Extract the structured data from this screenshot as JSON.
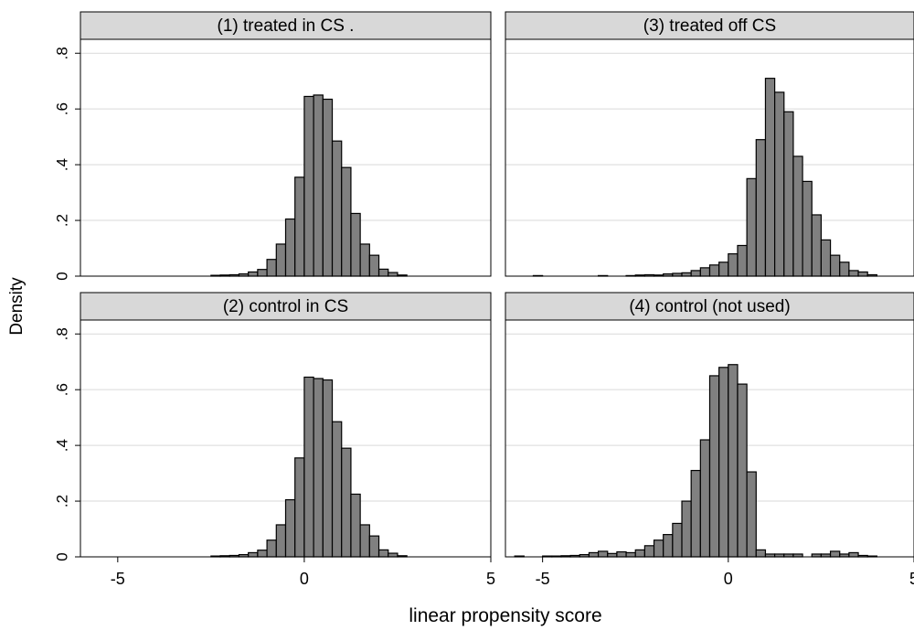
{
  "chart_data": {
    "type": "histogram",
    "layout": "2x2 small multiples",
    "xlabel": "linear propensity score",
    "ylabel": "Density",
    "xlim": [
      -6,
      5
    ],
    "ylim": [
      0,
      0.85
    ],
    "x_ticks": [
      {
        "value": -5,
        "label": "-5"
      },
      {
        "value": 0,
        "label": "0"
      },
      {
        "value": 5,
        "label": "5"
      }
    ],
    "y_ticks": [
      {
        "value": 0,
        "label": "0"
      },
      {
        "value": 0.2,
        "label": ".2"
      },
      {
        "value": 0.4,
        "label": ".4"
      },
      {
        "value": 0.6,
        "label": ".6"
      },
      {
        "value": 0.8,
        "label": ".8"
      }
    ],
    "grid": true,
    "bin_width": 0.25,
    "colors": {
      "bar_fill": "#808080",
      "bar_edge": "#000000",
      "panel_header": "#d8d8d8",
      "grid": "#d9d9d9"
    },
    "panels": [
      {
        "title": "(1) treated  in CS .",
        "bin_starts": [
          -2.5,
          -2.25,
          -2.0,
          -1.75,
          -1.5,
          -1.25,
          -1.0,
          -0.75,
          -0.5,
          -0.25,
          0.0,
          0.25,
          0.5,
          0.75,
          1.0,
          1.25,
          1.5,
          1.75,
          2.0,
          2.25,
          2.5
        ],
        "density": [
          0.003,
          0.004,
          0.005,
          0.008,
          0.015,
          0.024,
          0.06,
          0.115,
          0.205,
          0.355,
          0.645,
          0.65,
          0.635,
          0.485,
          0.39,
          0.225,
          0.115,
          0.075,
          0.025,
          0.013,
          0.004
        ]
      },
      {
        "title": "(3) treated off CS",
        "bin_starts": [
          -5.25,
          -5.0,
          -4.75,
          -4.5,
          -4.25,
          -4.0,
          -3.75,
          -3.5,
          -3.25,
          -3.0,
          -2.75,
          -2.5,
          -2.25,
          -2.0,
          -1.75,
          -1.5,
          -1.25,
          -1.0,
          -0.75,
          -0.5,
          -0.25,
          0.0,
          0.25,
          0.5,
          0.75,
          1.0,
          1.25,
          1.5,
          1.75,
          2.0,
          2.25,
          2.5,
          2.75,
          3.0,
          3.25,
          3.5,
          3.75
        ],
        "density": [
          0.002,
          0.0,
          0.0,
          0.0,
          0.0,
          0.0,
          0.0,
          0.002,
          0.0,
          0.0,
          0.002,
          0.004,
          0.005,
          0.004,
          0.008,
          0.01,
          0.012,
          0.02,
          0.03,
          0.04,
          0.05,
          0.08,
          0.11,
          0.35,
          0.49,
          0.71,
          0.66,
          0.59,
          0.43,
          0.34,
          0.22,
          0.13,
          0.075,
          0.05,
          0.02,
          0.015,
          0.005
        ]
      },
      {
        "title": "(2) control in CS",
        "bin_starts": [
          -2.5,
          -2.25,
          -2.0,
          -1.75,
          -1.5,
          -1.25,
          -1.0,
          -0.75,
          -0.5,
          -0.25,
          0.0,
          0.25,
          0.5,
          0.75,
          1.0,
          1.25,
          1.5,
          1.75,
          2.0,
          2.25,
          2.5
        ],
        "density": [
          0.003,
          0.004,
          0.005,
          0.008,
          0.015,
          0.024,
          0.06,
          0.115,
          0.205,
          0.355,
          0.645,
          0.64,
          0.635,
          0.485,
          0.39,
          0.225,
          0.115,
          0.075,
          0.025,
          0.013,
          0.004
        ]
      },
      {
        "title": "(4) control (not used)",
        "bin_starts": [
          -5.75,
          -5.5,
          -5.25,
          -5.0,
          -4.75,
          -4.5,
          -4.25,
          -4.0,
          -3.75,
          -3.5,
          -3.25,
          -3.0,
          -2.75,
          -2.5,
          -2.25,
          -2.0,
          -1.75,
          -1.5,
          -1.25,
          -1.0,
          -0.75,
          -0.5,
          -0.25,
          0.0,
          0.25,
          0.5,
          0.75,
          1.0,
          1.25,
          1.5,
          1.75,
          2.0,
          2.25,
          2.5,
          2.75,
          3.0,
          3.25,
          3.5,
          3.75
        ],
        "density": [
          0.003,
          0.0,
          0.0,
          0.003,
          0.003,
          0.004,
          0.005,
          0.008,
          0.015,
          0.02,
          0.012,
          0.018,
          0.015,
          0.025,
          0.04,
          0.06,
          0.08,
          0.12,
          0.2,
          0.31,
          0.42,
          0.65,
          0.68,
          0.69,
          0.62,
          0.305,
          0.025,
          0.01,
          0.01,
          0.01,
          0.01,
          0.0,
          0.01,
          0.01,
          0.02,
          0.01,
          0.015,
          0.005,
          0.003
        ]
      }
    ]
  }
}
